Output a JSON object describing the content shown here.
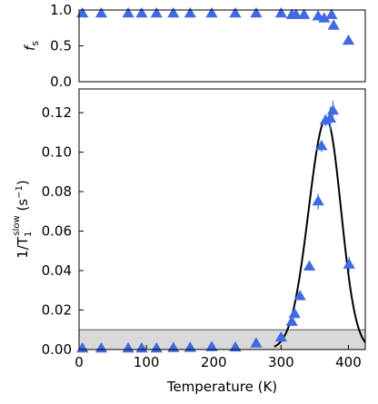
{
  "chart_data": [
    {
      "type": "scatter",
      "ylabel_main": "f",
      "ylabel_sub": "s",
      "xlim": [
        0,
        425
      ],
      "ylim": [
        0.0,
        1.0
      ],
      "yticks": [
        0.0,
        0.5,
        1.0
      ],
      "ytick_labels": [
        "0.0",
        "0.5",
        "1.0"
      ],
      "grid": false,
      "reference_line": {
        "y": 1.0,
        "style": "dashed"
      },
      "series": [
        {
          "marker": "triangle",
          "color": "#4169e1",
          "x": [
            5,
            33,
            73,
            93,
            115,
            140,
            165,
            197,
            232,
            263,
            300,
            316,
            322,
            334,
            355,
            364,
            375,
            378,
            400
          ],
          "y": [
            0.95,
            0.95,
            0.95,
            0.95,
            0.95,
            0.95,
            0.95,
            0.95,
            0.95,
            0.95,
            0.95,
            0.93,
            0.93,
            0.93,
            0.91,
            0.88,
            0.93,
            0.78,
            0.57
          ],
          "yerr": [
            0,
            0,
            0,
            0,
            0,
            0,
            0,
            0,
            0,
            0,
            0,
            0,
            0,
            0,
            0,
            0,
            0.04,
            0.03,
            0
          ]
        }
      ]
    },
    {
      "type": "scatter",
      "ylabel": "1/T",
      "ylabel_sub": "1",
      "ylabel_sup": "slow",
      "ylabel_unit": " (s",
      "ylabel_unit_sup": "−1",
      "ylabel_close": ")",
      "xlabel": "Temperature (K)",
      "xlim": [
        0,
        425
      ],
      "ylim": [
        0.0,
        0.132
      ],
      "xticks": [
        0,
        100,
        200,
        300,
        400
      ],
      "xtick_labels": [
        "0",
        "100",
        "200",
        "300",
        "400"
      ],
      "yticks": [
        0.0,
        0.02,
        0.04,
        0.06,
        0.08,
        0.1,
        0.12
      ],
      "ytick_labels": [
        "0.00",
        "0.02",
        "0.04",
        "0.06",
        "0.08",
        "0.10",
        "0.12"
      ],
      "grid": false,
      "shaded_region": {
        "y0": 0.0,
        "y1": 0.01,
        "color": "#d9d9d9"
      },
      "fit_curve": {
        "color": "#000000",
        "peak_x": 367,
        "peak_y": 0.117,
        "width_low": 26,
        "width_high": 22,
        "x_start": 290,
        "x_end": 425
      },
      "series": [
        {
          "marker": "triangle",
          "color": "#4169e1",
          "x": [
            5,
            33,
            73,
            93,
            115,
            140,
            165,
            197,
            232,
            263,
            300,
            316,
            320,
            328,
            342,
            355,
            360,
            366,
            373,
            377,
            401
          ],
          "y": [
            0.0005,
            0.0005,
            0.0005,
            0.0005,
            0.0005,
            0.0007,
            0.0008,
            0.0012,
            0.001,
            0.003,
            0.006,
            0.014,
            0.018,
            0.027,
            0.042,
            0.075,
            0.103,
            0.116,
            0.117,
            0.121,
            0.043
          ],
          "yerr": [
            0,
            0,
            0,
            0,
            0,
            0,
            0.001,
            0.002,
            0.001,
            0.002,
            0.002,
            0.002,
            0.002,
            0.002,
            0.002,
            0.004,
            0.003,
            0.003,
            0.006,
            0.005,
            0.004
          ]
        }
      ]
    }
  ],
  "colors": {
    "marker": "#4169e1",
    "fit_line": "#000000",
    "shade": "#d9d9d9",
    "reference": "#808080"
  }
}
